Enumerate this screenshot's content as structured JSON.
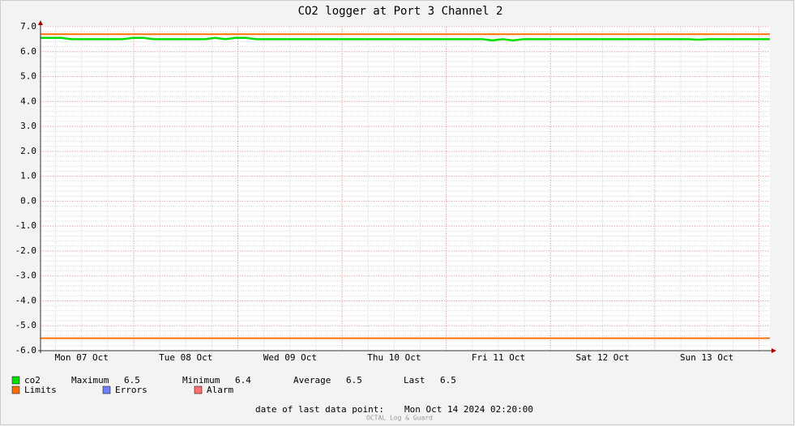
{
  "chart_data": {
    "type": "line",
    "title": "CO2 logger at Port 3 Channel 2",
    "ylim": [
      -6,
      7
    ],
    "yticks": [
      {
        "value": 7,
        "label": "7.0"
      },
      {
        "value": 6,
        "label": "6.0"
      },
      {
        "value": 5,
        "label": "5.0"
      },
      {
        "value": 4,
        "label": "4.0"
      },
      {
        "value": 3,
        "label": "3.0"
      },
      {
        "value": 2,
        "label": "2.0"
      },
      {
        "value": 1,
        "label": "1.0"
      },
      {
        "value": 0,
        "label": "0.0"
      },
      {
        "value": -1,
        "label": "-1.0"
      },
      {
        "value": -2,
        "label": "-2.0"
      },
      {
        "value": -3,
        "label": "-3.0"
      },
      {
        "value": -4,
        "label": "-4.0"
      },
      {
        "value": -5,
        "label": "-5.0"
      },
      {
        "value": -6,
        "label": "-6.0"
      }
    ],
    "xticks": [
      "Mon 07 Oct",
      "Tue 08 Oct",
      "Wed 09 Oct",
      "Thu 10 Oct",
      "Fri 11 Oct",
      "Sat 12 Oct",
      "Sun 13 Oct"
    ],
    "grid": true,
    "series": [
      {
        "name": "co2",
        "color": "#00e000",
        "values": [
          6.55,
          6.55,
          6.55,
          6.5,
          6.5,
          6.5,
          6.5,
          6.5,
          6.5,
          6.55,
          6.55,
          6.5,
          6.5,
          6.5,
          6.5,
          6.5,
          6.5,
          6.55,
          6.5,
          6.55,
          6.55,
          6.5,
          6.5,
          6.5,
          6.5,
          6.5,
          6.5,
          6.5,
          6.5,
          6.5,
          6.5,
          6.5,
          6.5,
          6.5,
          6.5,
          6.5,
          6.5,
          6.5,
          6.5,
          6.5,
          6.5,
          6.5,
          6.5,
          6.5,
          6.45,
          6.5,
          6.45,
          6.5,
          6.5,
          6.5,
          6.5,
          6.5,
          6.5,
          6.5,
          6.5,
          6.5,
          6.5,
          6.5,
          6.5,
          6.5,
          6.5,
          6.5,
          6.5,
          6.5,
          6.48,
          6.5,
          6.5,
          6.5,
          6.5,
          6.5,
          6.5,
          6.5
        ]
      }
    ],
    "limits": {
      "name": "Limits",
      "color": "#ff7000",
      "values": [
        6.7,
        -5.5
      ]
    },
    "legend_extra": [
      {
        "name": "Errors",
        "color": "#7080ff"
      },
      {
        "name": "Alarm",
        "color": "#ff7070"
      }
    ],
    "stats": [
      {
        "label": "Maximum",
        "value": 6.5
      },
      {
        "label": "Minimum",
        "value": 6.4
      },
      {
        "label": "Average",
        "value": 6.5
      },
      {
        "label": "Last",
        "value": 6.5
      }
    ],
    "footer": {
      "last_data_label": "date of last data point:",
      "last_data": "Mon Oct 14 2024 02:20:00",
      "credit": "OCTAL Log & Guard"
    }
  }
}
